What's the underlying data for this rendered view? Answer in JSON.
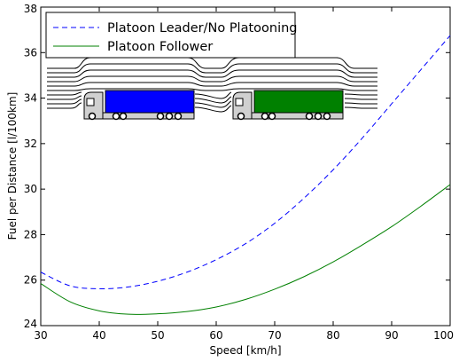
{
  "chart_data": {
    "type": "line",
    "xlabel": "Speed [km/h]",
    "ylabel": "Fuel per Distance [l/100km]",
    "xlim": [
      30,
      100
    ],
    "ylim": [
      24,
      38
    ],
    "xticks": [
      30,
      40,
      50,
      60,
      70,
      80,
      90,
      100
    ],
    "yticks": [
      24,
      26,
      28,
      30,
      32,
      34,
      36,
      38
    ],
    "grid": false,
    "legend_position": "top-left",
    "series": [
      {
        "name": "Platoon Leader/No Platooning",
        "style": "dashed",
        "color": "#0000ff",
        "x": [
          30,
          35,
          40,
          45,
          50,
          55,
          60,
          65,
          70,
          75,
          80,
          85,
          90,
          95,
          100
        ],
        "y": [
          26.35,
          25.75,
          25.62,
          25.7,
          25.95,
          26.35,
          26.9,
          27.6,
          28.5,
          29.6,
          30.85,
          32.25,
          33.75,
          35.25,
          36.75
        ]
      },
      {
        "name": "Platoon Follower",
        "style": "solid",
        "color": "#008000",
        "x": [
          30,
          35,
          40,
          45,
          50,
          55,
          60,
          65,
          70,
          75,
          80,
          85,
          90,
          95,
          100
        ],
        "y": [
          25.85,
          25.05,
          24.65,
          24.5,
          24.52,
          24.62,
          24.82,
          25.15,
          25.6,
          26.15,
          26.8,
          27.55,
          28.35,
          29.25,
          30.2
        ]
      }
    ]
  },
  "illustration": {
    "trucks": [
      {
        "name": "lead-truck",
        "trailer_color": "#0000ff"
      },
      {
        "name": "follower-truck",
        "trailer_color": "#008000"
      }
    ]
  }
}
